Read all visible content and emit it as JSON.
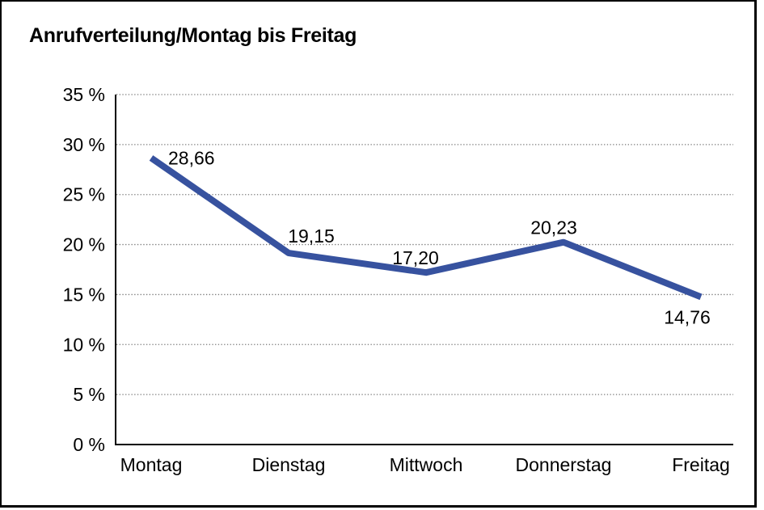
{
  "chart_data": {
    "type": "line",
    "title": "Anrufverteilung/Montag bis Freitag",
    "categories": [
      "Montag",
      "Dienstag",
      "Mittwoch",
      "Donnerstag",
      "Freitag"
    ],
    "series": [
      {
        "name": "Anrufverteilung",
        "values": [
          28.66,
          19.15,
          17.2,
          20.23,
          14.76
        ]
      }
    ],
    "point_labels": [
      "28,66",
      "19,15",
      "17,20",
      "20,23",
      "14,76"
    ],
    "xlabel": "",
    "ylabel": "",
    "ylim": [
      0,
      35
    ],
    "y_tick_values": [
      0,
      5,
      10,
      15,
      20,
      25,
      30,
      35
    ],
    "y_tick_labels": [
      "0 %",
      "5 %",
      "10 %",
      "15 %",
      "20 %",
      "25 %",
      "30 %",
      "35 %"
    ],
    "grid": "horizontal-dotted",
    "legend_position": "none",
    "line_color": "#37529F",
    "axis_color": "#000000",
    "gridline_color": "#777777",
    "background_color": "#ffffff"
  }
}
